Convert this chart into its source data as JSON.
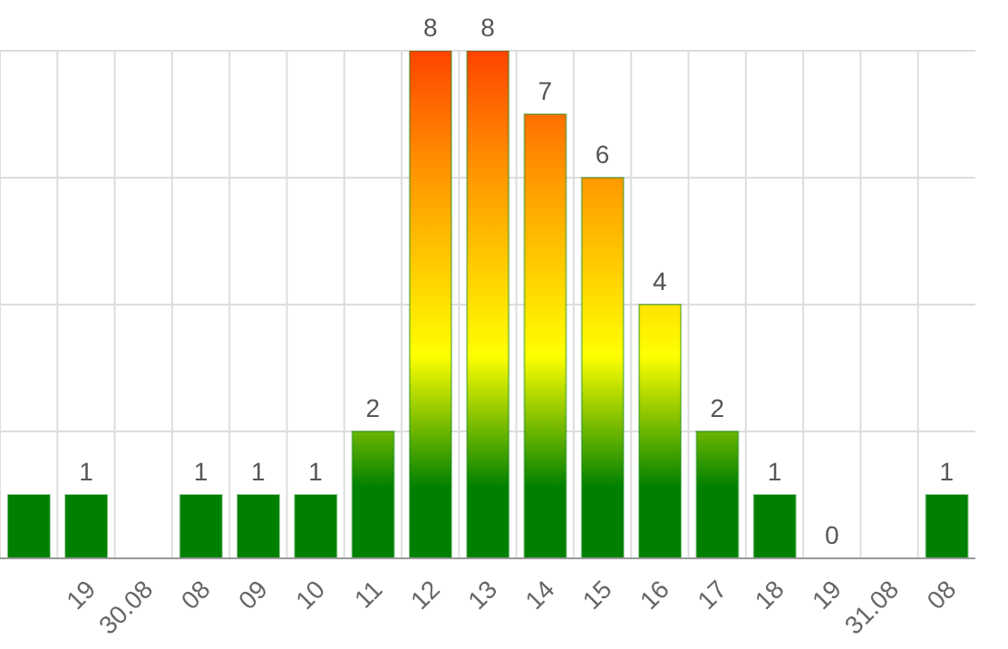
{
  "chart_data": {
    "type": "bar",
    "categories": [
      null,
      "19",
      "30.08",
      "08",
      "09",
      "10",
      "11",
      "12",
      "13",
      "14",
      "15",
      "16",
      "17",
      "18",
      "19",
      "31.08",
      "08"
    ],
    "series": [
      {
        "color": "#008000",
        "values": [
          1,
          1,
          null,
          1,
          1,
          1,
          2,
          8,
          8,
          7,
          6,
          4,
          2,
          1,
          0,
          null,
          1
        ],
        "value_labels": [
          null,
          "1",
          null,
          "1",
          "1",
          "1",
          "2",
          "8",
          "8",
          "7",
          "6",
          "4",
          "2",
          "1",
          "0",
          null,
          "1"
        ]
      }
    ],
    "ylim": [
      0,
      8
    ],
    "yticks": [
      {
        "value": 0,
        "label": null
      },
      {
        "value": 2,
        "label": null
      },
      {
        "value": 4,
        "label": null
      },
      {
        "value": 6,
        "label": null
      },
      {
        "value": 8,
        "label": null
      }
    ],
    "tick_labels": "x",
    "grid": true,
    "legend": false
  }
}
